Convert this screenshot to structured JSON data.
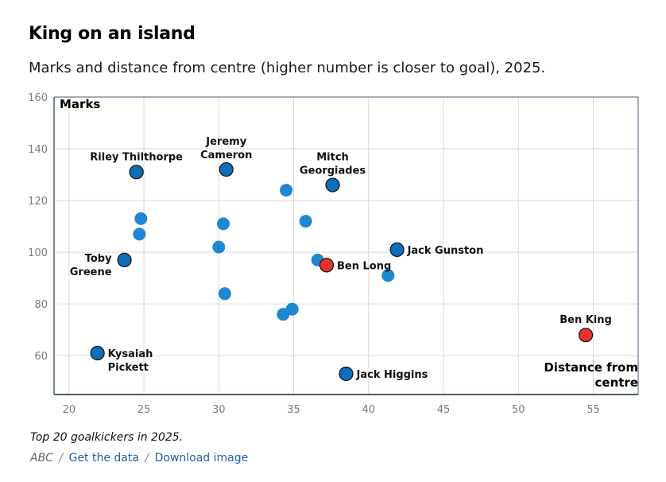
{
  "title": "King on an island",
  "subtitle": "Marks and distance from centre (higher number is closer to goal), 2025.",
  "footnote": "Top 20 goalkickers in 2025.",
  "credits": {
    "source": "ABC",
    "separator": "/",
    "link1": "Get the data",
    "link2": "Download image"
  },
  "colors": {
    "default": "#1f86d0",
    "labelled": "#0e6eb8",
    "highlight": "#e8312a",
    "grid": "#d9d9d9",
    "axis": "#4a5a75"
  },
  "chart_data": {
    "type": "scatter",
    "xlabel": "Distance from centre",
    "ylabel": "Marks",
    "xlim": [
      19,
      58
    ],
    "ylim": [
      45,
      160
    ],
    "xticks": [
      20,
      25,
      30,
      35,
      40,
      45,
      50,
      55
    ],
    "yticks": [
      60,
      80,
      100,
      120,
      140,
      160
    ],
    "grid": true,
    "points": [
      {
        "x": 24.5,
        "y": 131,
        "label": "Riley Thilthorpe",
        "style": "labelled"
      },
      {
        "x": 30.5,
        "y": 132,
        "label": "Jeremy Cameron",
        "style": "labelled"
      },
      {
        "x": 37.6,
        "y": 126,
        "label": "Mitch Georgiades",
        "style": "labelled"
      },
      {
        "x": 23.7,
        "y": 97,
        "label": "Toby Greene",
        "style": "labelled"
      },
      {
        "x": 41.9,
        "y": 101,
        "label": "Jack Gunston",
        "style": "labelled"
      },
      {
        "x": 37.2,
        "y": 95,
        "label": "Ben Long",
        "style": "highlight"
      },
      {
        "x": 54.5,
        "y": 68,
        "label": "Ben King",
        "style": "highlight"
      },
      {
        "x": 21.9,
        "y": 61,
        "label": "Kysaiah Pickett",
        "style": "labelled"
      },
      {
        "x": 38.5,
        "y": 53,
        "label": "Jack Higgins",
        "style": "labelled"
      },
      {
        "x": 34.5,
        "y": 124,
        "label": "",
        "style": "default"
      },
      {
        "x": 24.8,
        "y": 113,
        "label": "",
        "style": "default"
      },
      {
        "x": 30.3,
        "y": 111,
        "label": "",
        "style": "default"
      },
      {
        "x": 35.8,
        "y": 112,
        "label": "",
        "style": "default"
      },
      {
        "x": 24.7,
        "y": 107,
        "label": "",
        "style": "default"
      },
      {
        "x": 30.0,
        "y": 102,
        "label": "",
        "style": "default"
      },
      {
        "x": 36.6,
        "y": 97,
        "label": "",
        "style": "default"
      },
      {
        "x": 41.3,
        "y": 91,
        "label": "",
        "style": "default"
      },
      {
        "x": 30.4,
        "y": 84,
        "label": "",
        "style": "default"
      },
      {
        "x": 34.9,
        "y": 78,
        "label": "",
        "style": "default"
      },
      {
        "x": 34.3,
        "y": 76,
        "label": "",
        "style": "default"
      }
    ]
  }
}
